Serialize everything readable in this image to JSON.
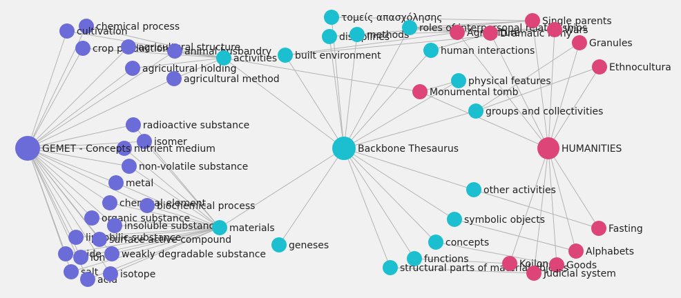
{
  "colors": {
    "background": "#f1f1f1",
    "edge": "#b3b3b3",
    "gemet": "#6c6cd8",
    "backbone": "#1bbfd0",
    "humanities": "#dd4478",
    "text": "#222222"
  },
  "hubs": {
    "gemet": "GEMET - Concepts",
    "backbone": "Backbone Thesaurus",
    "humanities": "HUMANITIES"
  },
  "gemet_nodes": [
    "chemical process",
    "cultivation",
    "crop production",
    "agricultural structure",
    "animal husbandry",
    "agricultural holding",
    "agricultural method",
    "radioactive substance",
    "isomer",
    "nutrient medium",
    "non-volatile substance",
    "metal",
    "chemical element",
    "biochemical process",
    "organic substance",
    "insoluble substance",
    "lipophilic substance",
    "surface active compound",
    "oxide",
    "ion",
    "weakly degradable substance",
    "salt",
    "acid",
    "isotope"
  ],
  "backbone_nodes": [
    "τομείς απασχόλησης",
    "disciplines",
    "methods",
    "roles of interpersonal relationships",
    "activities",
    "built environment",
    "human interactions",
    "physical features",
    "groups and collectivities",
    "materials",
    "geneses",
    "other activities",
    "symbolic objects",
    "concepts",
    "functions",
    "structural parts of material objects"
  ],
  "humanities_nodes": [
    "Agriculture",
    "Dramatic irony",
    "Single parents",
    "Wars",
    "Granules",
    "Ethnocultura",
    "Monumental tomb",
    "Fasting",
    "Alphabets",
    "Koilon",
    "Goods",
    "Judicial system"
  ]
}
